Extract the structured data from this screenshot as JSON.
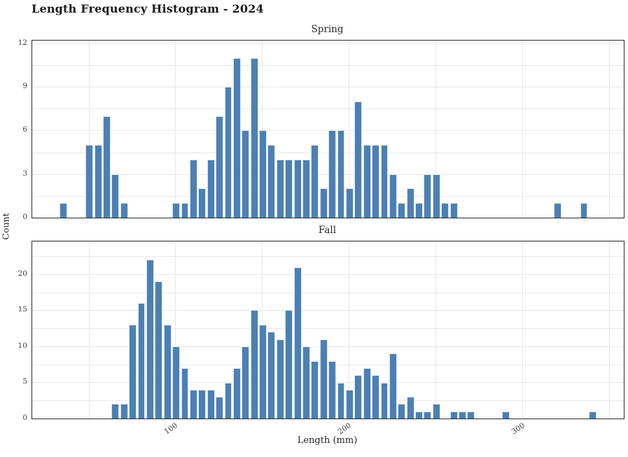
{
  "figure": {
    "title": "Length Frequency Histogram - 2024",
    "xlabel": "Length (mm)",
    "ylabel": "Count"
  },
  "colors": {
    "bar_fill": "#4c80b4",
    "bar_edge": "#dce8f3",
    "grid": "#e8e8e8",
    "spine": "#2b2b2b",
    "text": "#262626"
  },
  "chart_data": {
    "type": "bar",
    "subtype": "histogram",
    "title": "Length Frequency Histogram - 2024",
    "xlabel": "Length (mm)",
    "ylabel": "Count",
    "binwidth_mm": 5,
    "xlim": [
      17.5,
      358.5
    ],
    "x_major_ticks": [
      100,
      200,
      300
    ],
    "x_gridlines_mm": [
      50,
      100,
      150,
      200,
      250,
      300,
      350
    ],
    "grid": "on",
    "subplots": [
      {
        "title": "Spring",
        "bin_start_mm": 33,
        "counts": [
          1,
          0,
          0,
          5,
          5,
          7,
          3,
          1,
          0,
          0,
          0,
          0,
          0,
          1,
          1,
          4,
          2,
          4,
          7,
          9,
          11,
          6,
          11,
          6,
          5,
          4,
          4,
          4,
          4,
          5,
          2,
          6,
          6,
          2,
          8,
          5,
          5,
          5,
          3,
          1,
          2,
          1,
          3,
          3,
          1,
          1,
          0,
          0,
          0,
          0,
          0,
          0,
          0,
          0,
          0,
          0,
          0,
          1,
          0,
          0,
          1
        ],
        "ylim": [
          0,
          12.18
        ],
        "y_ticks": [
          0,
          3,
          6,
          9,
          12
        ],
        "y_grid_step": 1.5
      },
      {
        "title": "Fall",
        "bin_start_mm": 63,
        "counts": [
          2,
          2,
          13,
          16,
          22,
          19,
          13,
          10,
          7,
          4,
          4,
          4,
          3,
          5,
          7,
          10,
          15,
          13,
          12,
          11,
          15,
          21,
          10,
          8,
          11,
          8,
          5,
          4,
          6,
          7,
          6,
          5,
          9,
          2,
          3,
          1,
          1,
          2,
          0,
          1,
          1,
          1,
          0,
          0,
          0,
          1,
          0,
          0,
          0,
          0,
          0,
          0,
          0,
          0,
          0,
          1
        ],
        "ylim": [
          0,
          24.56
        ],
        "y_ticks": [
          0,
          5,
          10,
          15,
          20
        ],
        "y_grid_step": 2.5
      }
    ]
  }
}
